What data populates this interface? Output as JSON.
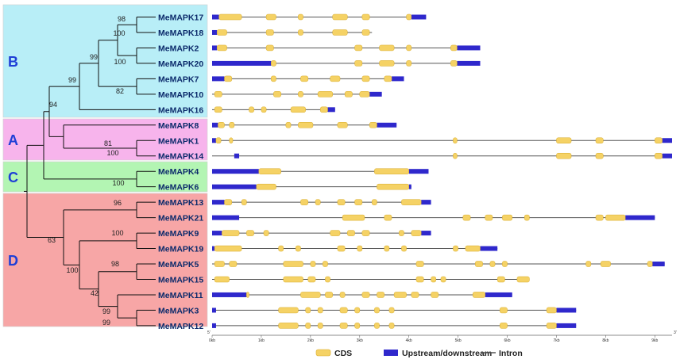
{
  "groups": [
    {
      "label": "B",
      "color": "#b8eef7"
    },
    {
      "label": "A",
      "color": "#f7b4ec"
    },
    {
      "label": "C",
      "color": "#b3f5b3"
    },
    {
      "label": "D",
      "color": "#f7a6a6"
    }
  ],
  "genes": [
    {
      "name": "MeMAPK17",
      "group": "B",
      "cds": [
        [
          0.14,
          0.6
        ],
        [
          1.1,
          1.3
        ],
        [
          1.75,
          1.85
        ],
        [
          2.45,
          2.75
        ],
        [
          3.05,
          3.2
        ],
        [
          3.95,
          4.05
        ]
      ],
      "utr": [
        [
          0,
          0.14
        ],
        [
          4.05,
          4.35
        ]
      ],
      "end": 4.35
    },
    {
      "name": "MeMAPK18",
      "group": "B",
      "cds": [
        [
          0.1,
          0.3
        ],
        [
          1.1,
          1.25
        ],
        [
          1.75,
          1.85
        ],
        [
          2.45,
          2.75
        ],
        [
          3.05,
          3.2
        ]
      ],
      "utr": [
        [
          0,
          0.1
        ]
      ],
      "end": 3.25
    },
    {
      "name": "MeMAPK2",
      "group": "B",
      "cds": [
        [
          0.1,
          0.3
        ],
        [
          1.1,
          1.25
        ],
        [
          2.9,
          3.05
        ],
        [
          3.4,
          3.7
        ],
        [
          3.95,
          4.05
        ],
        [
          4.85,
          4.98
        ]
      ],
      "utr": [
        [
          0,
          0.1
        ],
        [
          4.98,
          5.45
        ]
      ],
      "end": 5.45
    },
    {
      "name": "MeMAPK20",
      "group": "B",
      "cds": [
        [
          1.2,
          1.3
        ],
        [
          2.9,
          3.05
        ],
        [
          3.4,
          3.7
        ],
        [
          3.95,
          4.05
        ],
        [
          4.85,
          4.98
        ]
      ],
      "utr": [
        [
          0,
          1.2
        ],
        [
          4.98,
          5.45
        ]
      ],
      "end": 5.45
    },
    {
      "name": "MeMAPK7",
      "group": "B",
      "cds": [
        [
          0.25,
          0.4
        ],
        [
          1.2,
          1.3
        ],
        [
          1.8,
          1.95
        ],
        [
          2.4,
          2.6
        ],
        [
          3.05,
          3.2
        ],
        [
          3.5,
          3.65
        ]
      ],
      "utr": [
        [
          0,
          0.25
        ],
        [
          3.65,
          3.9
        ]
      ],
      "end": 3.9
    },
    {
      "name": "MeMAPK10",
      "group": "B",
      "cds": [
        [
          0.05,
          0.2
        ],
        [
          1.25,
          1.4
        ],
        [
          1.75,
          1.85
        ],
        [
          2.15,
          2.45
        ],
        [
          2.7,
          2.85
        ],
        [
          3.0,
          3.2
        ]
      ],
      "utr": [
        [
          3.2,
          3.45
        ]
      ],
      "end": 3.45
    },
    {
      "name": "MeMAPK16",
      "group": "B",
      "cds": [
        [
          0.05,
          0.2
        ],
        [
          0.75,
          0.85
        ],
        [
          1.0,
          1.1
        ],
        [
          1.6,
          1.9
        ],
        [
          2.2,
          2.35
        ]
      ],
      "utr": [
        [
          2.35,
          2.5
        ]
      ],
      "end": 2.5
    },
    {
      "name": "MeMAPK8",
      "group": "A",
      "cds": [
        [
          0.12,
          0.25
        ],
        [
          0.35,
          0.45
        ],
        [
          1.5,
          1.6
        ],
        [
          1.75,
          2.05
        ],
        [
          2.55,
          2.75
        ],
        [
          3.2,
          3.35
        ]
      ],
      "utr": [
        [
          0,
          0.12
        ],
        [
          3.35,
          3.75
        ]
      ],
      "end": 3.75
    },
    {
      "name": "MeMAPK1",
      "group": "A",
      "cds": [
        [
          0.08,
          0.18
        ],
        [
          0.35,
          0.42
        ],
        [
          4.9,
          4.98
        ],
        [
          7.0,
          7.3
        ],
        [
          7.8,
          7.95
        ],
        [
          9.0,
          9.15
        ]
      ],
      "utr": [
        [
          0,
          0.08
        ],
        [
          9.15,
          9.35
        ]
      ],
      "end": 9.35
    },
    {
      "name": "MeMAPK14",
      "group": "A",
      "cds": [
        [
          4.9,
          4.98
        ],
        [
          7.0,
          7.3
        ],
        [
          7.8,
          7.95
        ],
        [
          9.0,
          9.15
        ]
      ],
      "utr": [
        [
          0.45,
          0.55
        ],
        [
          9.15,
          9.35
        ]
      ],
      "end": 9.35
    },
    {
      "name": "MeMAPK4",
      "group": "C",
      "cds": [
        [
          0.95,
          1.4
        ],
        [
          3.3,
          4.0
        ]
      ],
      "utr": [
        [
          0,
          0.95
        ],
        [
          4.0,
          4.4
        ]
      ],
      "end": 4.4
    },
    {
      "name": "MeMAPK6",
      "group": "C",
      "cds": [
        [
          0.9,
          1.3
        ],
        [
          3.35,
          4.0
        ]
      ],
      "utr": [
        [
          0,
          0.9
        ],
        [
          4.0,
          4.05
        ]
      ],
      "end": 4.05
    },
    {
      "name": "MeMAPK13",
      "group": "D",
      "cds": [
        [
          0.25,
          0.4
        ],
        [
          0.6,
          0.7
        ],
        [
          1.8,
          1.95
        ],
        [
          2.1,
          2.2
        ],
        [
          2.55,
          2.7
        ],
        [
          2.9,
          3.05
        ],
        [
          3.25,
          3.35
        ],
        [
          3.85,
          4.25
        ]
      ],
      "utr": [
        [
          0,
          0.25
        ],
        [
          4.25,
          4.45
        ]
      ],
      "end": 4.45
    },
    {
      "name": "MeMAPK21",
      "group": "D",
      "cds": [
        [
          2.65,
          3.1
        ],
        [
          3.5,
          3.65
        ],
        [
          5.1,
          5.25
        ],
        [
          5.55,
          5.7
        ],
        [
          5.9,
          6.1
        ],
        [
          6.35,
          6.45
        ],
        [
          7.8,
          7.95
        ],
        [
          8.0,
          8.4
        ]
      ],
      "utr": [
        [
          0,
          0.55
        ],
        [
          8.4,
          9.0
        ]
      ],
      "end": 9.0
    },
    {
      "name": "MeMAPK9",
      "group": "D",
      "cds": [
        [
          0.2,
          0.55
        ],
        [
          0.7,
          0.85
        ],
        [
          1.05,
          1.15
        ],
        [
          2.4,
          2.6
        ],
        [
          2.75,
          2.9
        ],
        [
          3.05,
          3.2
        ],
        [
          3.8,
          3.9
        ],
        [
          4.05,
          4.25
        ]
      ],
      "utr": [
        [
          0,
          0.2
        ],
        [
          4.25,
          4.45
        ]
      ],
      "end": 4.45
    },
    {
      "name": "MeMAPK19",
      "group": "D",
      "cds": [
        [
          0.05,
          0.6
        ],
        [
          1.35,
          1.45
        ],
        [
          1.7,
          1.8
        ],
        [
          2.55,
          2.7
        ],
        [
          2.95,
          3.05
        ],
        [
          3.5,
          3.6
        ],
        [
          3.85,
          3.95
        ],
        [
          4.9,
          5.0
        ],
        [
          5.15,
          5.45
        ]
      ],
      "utr": [
        [
          0,
          0.05
        ],
        [
          5.45,
          5.8
        ]
      ],
      "end": 5.8
    },
    {
      "name": "MeMAPK5",
      "group": "D",
      "cds": [
        [
          0.05,
          0.25
        ],
        [
          0.35,
          0.5
        ],
        [
          1.45,
          1.85
        ],
        [
          2.0,
          2.1
        ],
        [
          2.25,
          2.35
        ],
        [
          4.15,
          4.3
        ],
        [
          5.35,
          5.5
        ],
        [
          5.65,
          5.75
        ],
        [
          5.9,
          6.0
        ],
        [
          7.6,
          7.7
        ],
        [
          7.9,
          8.1
        ],
        [
          8.85,
          8.95
        ]
      ],
      "utr": [
        [
          8.95,
          9.2
        ]
      ],
      "end": 9.2
    },
    {
      "name": "MeMAPK15",
      "group": "D",
      "cds": [
        [
          0.05,
          0.35
        ],
        [
          1.45,
          1.85
        ],
        [
          1.95,
          2.1
        ],
        [
          2.3,
          2.4
        ],
        [
          4.15,
          4.3
        ],
        [
          4.45,
          4.55
        ],
        [
          4.65,
          4.75
        ],
        [
          5.8,
          5.95
        ],
        [
          6.2,
          6.45
        ]
      ],
      "utr": [],
      "end": 6.45
    },
    {
      "name": "MeMAPK11",
      "group": "D",
      "cds": [
        [
          0.7,
          0.75
        ],
        [
          1.8,
          2.2
        ],
        [
          2.3,
          2.45
        ],
        [
          2.6,
          2.7
        ],
        [
          3.05,
          3.2
        ],
        [
          3.35,
          3.5
        ],
        [
          3.7,
          3.95
        ],
        [
          4.05,
          4.2
        ],
        [
          4.45,
          4.6
        ],
        [
          5.3,
          5.55
        ]
      ],
      "utr": [
        [
          0,
          0.7
        ],
        [
          5.55,
          6.1
        ]
      ],
      "end": 6.1
    },
    {
      "name": "MeMAPK3",
      "group": "D",
      "cds": [
        [
          1.35,
          1.75
        ],
        [
          1.9,
          2.0
        ],
        [
          2.15,
          2.25
        ],
        [
          2.6,
          2.75
        ],
        [
          2.9,
          3.0
        ],
        [
          3.3,
          3.4
        ],
        [
          3.6,
          3.7
        ],
        [
          5.85,
          6.0
        ],
        [
          6.8,
          7.0
        ]
      ],
      "utr": [
        [
          0,
          0.08
        ],
        [
          7.0,
          7.4
        ]
      ],
      "end": 7.4
    },
    {
      "name": "MeMAPK12",
      "group": "D",
      "cds": [
        [
          1.35,
          1.75
        ],
        [
          1.9,
          2.0
        ],
        [
          2.15,
          2.25
        ],
        [
          2.6,
          2.75
        ],
        [
          2.9,
          3.0
        ],
        [
          3.3,
          3.4
        ],
        [
          3.6,
          3.7
        ],
        [
          5.85,
          6.0
        ],
        [
          6.8,
          7.0
        ]
      ],
      "utr": [
        [
          0,
          0.08
        ],
        [
          7.0,
          7.4
        ]
      ],
      "end": 7.4
    }
  ],
  "bootstrap": [
    "98",
    "100",
    "99",
    "100",
    "82",
    "99",
    "94",
    "81",
    "100",
    "100",
    "96",
    "100",
    "98",
    "42",
    "99",
    "99",
    "63",
    "100"
  ],
  "axis": {
    "ticks": [
      "0kb",
      "1kb",
      "2kb",
      "3kb",
      "4kb",
      "5kb",
      "6kb",
      "7kb",
      "8kb",
      "9kb"
    ],
    "five_prime": "5'",
    "three_prime": "3'",
    "max_kb": 9.35
  },
  "legend": {
    "cds": "CDS",
    "utr": "Upstream/downstream",
    "intron": "Intron"
  },
  "colors": {
    "cds": "#f5d265",
    "cds_edge": "#d8ac2c",
    "utr": "#2f28cc",
    "intron": "#555555",
    "leaf_text": "#0b2a6b",
    "tree": "#111111"
  }
}
